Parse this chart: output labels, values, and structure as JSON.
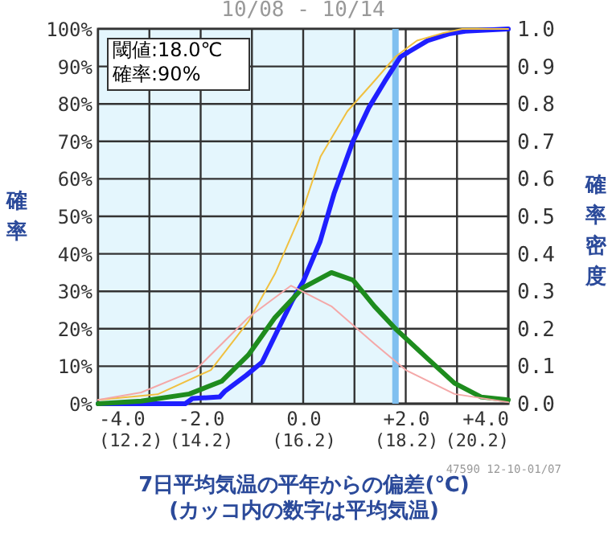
{
  "chart_data": {
    "type": "line",
    "title": "10/08 - 10/14",
    "xlabel": "7日平均気温の平年からの偏差(℃)\n(カッコ内の数字は平均気温)",
    "ylabel": "確率",
    "y2label": "確率密度",
    "annotations": [
      "閾値:18.0℃\n確率:90%",
      "47590 12-10-01/07"
    ],
    "xlim": [
      -4,
      4
    ],
    "xticks": [
      {
        "value": -4,
        "label": "-4.0"
      },
      {
        "value": -3,
        "label": null
      },
      {
        "value": -2,
        "label": "-2.0"
      },
      {
        "value": -1,
        "label": null
      },
      {
        "value": 0,
        "label": "0.0"
      },
      {
        "value": 1,
        "label": null
      },
      {
        "value": 2,
        "label": "+2.0"
      },
      {
        "value": 3,
        "label": null
      },
      {
        "value": 4,
        "label": "+4.0"
      }
    ],
    "x2lim": [
      12.2,
      20.2
    ],
    "x2ticks": [
      {
        "value": 12.2,
        "label": "(12.2)"
      },
      {
        "value": 14.2,
        "label": "(14.2)"
      },
      {
        "value": 16.2,
        "label": "(16.2)"
      },
      {
        "value": 18.2,
        "label": "(18.2)"
      },
      {
        "value": 20.2,
        "label": "(20.2)"
      }
    ],
    "ylim": [
      0,
      100
    ],
    "yticks": [
      {
        "value": 0,
        "label": "0%"
      },
      {
        "value": 10,
        "label": "10%"
      },
      {
        "value": 20,
        "label": "20%"
      },
      {
        "value": 30,
        "label": "30%"
      },
      {
        "value": 40,
        "label": "40%"
      },
      {
        "value": 50,
        "label": "50%"
      },
      {
        "value": 60,
        "label": "60%"
      },
      {
        "value": 70,
        "label": "70%"
      },
      {
        "value": 80,
        "label": "80%"
      },
      {
        "value": 90,
        "label": "90%"
      },
      {
        "value": 100,
        "label": "100%"
      }
    ],
    "y2lim": [
      0,
      1
    ],
    "y2ticks": [
      {
        "value": 0,
        "label": "0.0"
      },
      {
        "value": 0.1,
        "label": "0.1"
      },
      {
        "value": 0.2,
        "label": "0.2"
      },
      {
        "value": 0.3,
        "label": "0.3"
      },
      {
        "value": 0.4,
        "label": "0.4"
      },
      {
        "value": 0.5,
        "label": "0.5"
      },
      {
        "value": 0.6,
        "label": "0.6"
      },
      {
        "value": 0.7,
        "label": "0.7"
      },
      {
        "value": 0.8,
        "label": "0.8"
      },
      {
        "value": 0.9,
        "label": "0.9"
      },
      {
        "value": 1,
        "label": "1.0"
      }
    ],
    "series": [
      {
        "color": "#1f1fff",
        "x": [
          -4,
          -2.3,
          -2.16,
          -1.63,
          -1.53,
          -1.11,
          -0.8,
          -0.47,
          -0.21,
          0,
          0.33,
          0.6,
          0.97,
          1.28,
          1.59,
          1.9,
          2.43,
          2.84,
          3.16,
          4
        ],
        "values": [
          0,
          0,
          1.4,
          1.8,
          3.3,
          7.6,
          11.1,
          20.4,
          27.6,
          32.6,
          43.3,
          56,
          70,
          79,
          86,
          92.6,
          96.9,
          98.7,
          99.4,
          100
        ]
      },
      {
        "color": "#f0c040",
        "x": [
          -4,
          -2.84,
          -1.8,
          -1.07,
          -0.55,
          0,
          0.34,
          0.86,
          1.38,
          1.8,
          2.22,
          2.75,
          3.1,
          4
        ],
        "values": [
          1,
          2.5,
          9,
          21.9,
          34.7,
          52,
          66,
          78,
          86,
          92.6,
          96.9,
          99,
          100,
          100
        ]
      },
      {
        "color": "#1e8c1e",
        "axis": "y2",
        "x": [
          -4,
          -3.16,
          -2.22,
          -1.59,
          -1.07,
          -0.55,
          0,
          0.55,
          0.97,
          1.39,
          1.8,
          2.43,
          2.95,
          3.47,
          4
        ],
        "values": [
          0,
          0.007,
          0.026,
          0.06,
          0.13,
          0.23,
          0.31,
          0.35,
          0.33,
          0.26,
          0.2,
          0.12,
          0.055,
          0.018,
          0.01
        ]
      },
      {
        "color": "#f4a8a8",
        "axis": "y2",
        "x": [
          -4,
          -3.16,
          -2.1,
          -1.07,
          -0.24,
          0.55,
          1.39,
          2,
          2.95,
          4
        ],
        "values": [
          0.01,
          0.03,
          0.09,
          0.23,
          0.315,
          0.26,
          0.16,
          0.09,
          0.026,
          0.004
        ]
      }
    ],
    "bands": [
      {
        "axis": "x",
        "from": -4,
        "to": 1.8,
        "color": "#e4f6fd"
      }
    ],
    "ref_lines": [
      {
        "axis": "x",
        "value": 1.8,
        "color": "#80c0f0"
      }
    ],
    "grid": true,
    "marker": "none",
    "line_style": "solid"
  }
}
